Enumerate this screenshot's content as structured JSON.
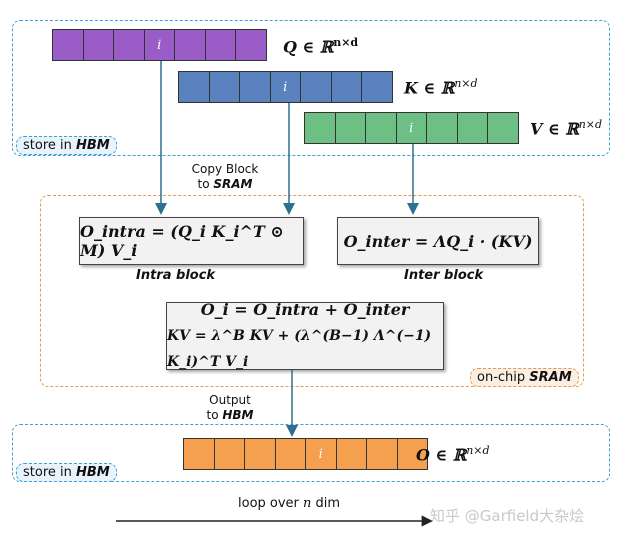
{
  "hbm_top": {
    "store_prefix": "store in ",
    "store_bold": "HBM",
    "q": {
      "label": "Q ∈ ℝ",
      "sup": "n×d",
      "color": "#9a5cc6",
      "cells": [
        "",
        "",
        "",
        "i",
        "",
        "",
        ""
      ]
    },
    "k": {
      "label": "K ∈ ℝ",
      "sup": "n×d",
      "color": "#5a82bf",
      "cells": [
        "",
        "",
        "",
        "i",
        "",
        "",
        ""
      ]
    },
    "v": {
      "label": "V ∈ ℝ",
      "sup": "n×d",
      "color": "#6dbf86",
      "cells": [
        "",
        "",
        "",
        "i",
        "",
        "",
        ""
      ]
    }
  },
  "copy_block": {
    "line1": "Copy Block",
    "line2_prefix": "to ",
    "line2_bold": "SRAM"
  },
  "sram": {
    "tag_prefix": "on-chip ",
    "tag_bold": "SRAM",
    "intra_formula": "O_intra = (Q_i K_i^T ⊙ M) V_i",
    "intra_caption": "Intra block",
    "inter_formula": "O_inter = ΛQ_i · (KV)",
    "inter_caption": "Inter block",
    "combine_line1": "O_i = O_intra + O_inter",
    "combine_line2": "KV = λ^B KV + (λ^(B−1) Λ^(−1) K_i)^T V_i"
  },
  "output_note": {
    "line1": "Output",
    "line2_prefix": "to ",
    "line2_bold": "HBM"
  },
  "hbm_bottom": {
    "store_prefix": "store in ",
    "store_bold": "HBM",
    "o": {
      "label": "O ∈ ℝ",
      "sup": "n×d",
      "color": "#f4a04e",
      "cells": [
        "",
        "",
        "",
        "",
        "i",
        "",
        "",
        ""
      ]
    }
  },
  "loop_label_prefix": "loop over ",
  "loop_label_var": "n",
  "loop_label_suffix": " dim",
  "watermark": "知乎 @Garfield大杂烩",
  "colors": {
    "hbm_border": "#3aa0d6",
    "sram_border": "#e69a4a",
    "arrow": "#2f6f8f"
  }
}
